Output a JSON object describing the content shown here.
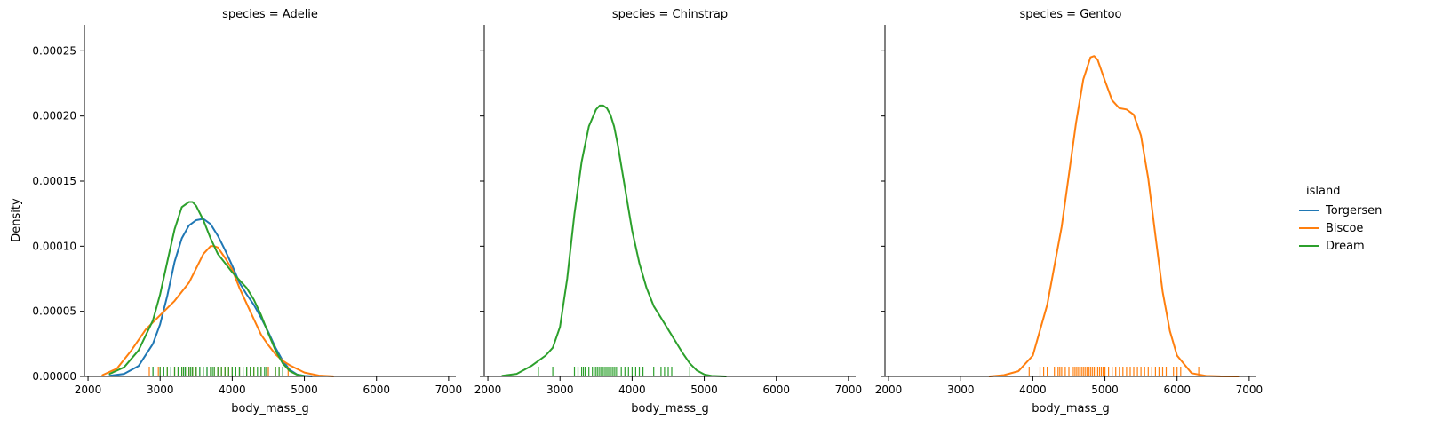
{
  "y_axis_label": "Density",
  "legend": {
    "title": "island",
    "entries": [
      {
        "label": "Torgersen",
        "color": "#1f77b4"
      },
      {
        "label": "Biscoe",
        "color": "#ff7f0e"
      },
      {
        "label": "Dream",
        "color": "#2ca02c"
      }
    ]
  },
  "chart_data": [
    {
      "type": "line",
      "title": "species = Adelie",
      "xlabel": "body_mass_g",
      "ylabel": "Density",
      "xlim": [
        1950,
        7100
      ],
      "ylim": [
        0,
        0.00027
      ],
      "xticks": [
        2000,
        3000,
        4000,
        5000,
        6000,
        7000
      ],
      "yticks": [
        0,
        5e-05,
        0.0001,
        0.00015,
        0.0002,
        0.00025
      ],
      "ytick_labels": [
        "0.00000",
        "0.00005",
        "0.00010",
        "0.00015",
        "0.00020",
        "0.00025"
      ],
      "series": [
        {
          "name": "Torgersen",
          "color": "#1f77b4",
          "x": [
            2300,
            2500,
            2700,
            2900,
            3000,
            3100,
            3200,
            3300,
            3400,
            3500,
            3600,
            3700,
            3800,
            3900,
            4000,
            4100,
            4200,
            4300,
            4400,
            4500,
            4600,
            4700,
            4800,
            4900,
            5000,
            5100
          ],
          "y": [
            5e-07,
            2e-06,
            8e-06,
            2.5e-05,
            4e-05,
            6.2e-05,
            8.8e-05,
            0.000106,
            0.000116,
            0.00012,
            0.000121,
            0.000117,
            0.000108,
            9.7e-05,
            8.5e-05,
            7.2e-05,
            6.3e-05,
            5.5e-05,
            4.5e-05,
            3.4e-05,
            2.2e-05,
            1.2e-05,
            5e-06,
            1.5e-06,
            4e-07,
            1e-07
          ],
          "rug": [
            2900,
            3050,
            3150,
            3250,
            3325,
            3350,
            3400,
            3450,
            3500,
            3550,
            3600,
            3650,
            3700,
            3750,
            3800,
            3900,
            4000,
            4100,
            4200,
            4250,
            4400,
            4450,
            4500,
            4700
          ]
        },
        {
          "name": "Biscoe",
          "color": "#ff7f0e",
          "x": [
            2200,
            2400,
            2600,
            2800,
            3000,
            3200,
            3400,
            3500,
            3600,
            3700,
            3750,
            3800,
            3900,
            4000,
            4100,
            4200,
            4300,
            4400,
            4500,
            4600,
            4700,
            4800,
            5000,
            5200,
            5400
          ],
          "y": [
            1e-06,
            6e-06,
            2e-05,
            3.6e-05,
            4.7e-05,
            5.8e-05,
            7.2e-05,
            8.3e-05,
            9.4e-05,
            0.0001,
            0.0001,
            9.9e-05,
            9.1e-05,
            8.2e-05,
            6.8e-05,
            5.6e-05,
            4.4e-05,
            3.2e-05,
            2.4e-05,
            1.7e-05,
            1.2e-05,
            8.5e-06,
            3e-06,
            7e-07,
            1e-07
          ],
          "rug": [
            2850,
            2975,
            3000,
            3100,
            3200,
            3250,
            3300,
            3350,
            3400,
            3450,
            3500,
            3600,
            3700,
            3750,
            3800,
            3850,
            3900,
            3950,
            4000,
            4100,
            4200,
            4250,
            4300,
            4400,
            4500,
            4600,
            4650,
            4775
          ]
        },
        {
          "name": "Dream",
          "color": "#2ca02c",
          "x": [
            2300,
            2500,
            2700,
            2900,
            3000,
            3100,
            3200,
            3300,
            3400,
            3450,
            3500,
            3600,
            3700,
            3800,
            3900,
            4000,
            4100,
            4200,
            4300,
            4400,
            4500,
            4600,
            4700,
            4800,
            4900,
            5000
          ],
          "y": [
            2e-06,
            7e-06,
            2e-05,
            4.3e-05,
            6.3e-05,
            8.8e-05,
            0.000113,
            0.00013,
            0.000134,
            0.000134,
            0.000131,
            0.00012,
            0.000106,
            9.4e-05,
            8.7e-05,
            8e-05,
            7.4e-05,
            6.8e-05,
            5.9e-05,
            4.7e-05,
            3.3e-05,
            2e-05,
            1e-05,
            4e-06,
            1.3e-06,
            3e-07
          ],
          "rug": [
            2900,
            3000,
            3050,
            3100,
            3150,
            3200,
            3250,
            3300,
            3325,
            3350,
            3400,
            3425,
            3450,
            3500,
            3550,
            3600,
            3650,
            3700,
            3725,
            3750,
            3800,
            3850,
            3900,
            3950,
            4000,
            4050,
            4100,
            4150,
            4200,
            4250,
            4300,
            4350,
            4400,
            4450,
            4475,
            4600,
            4650,
            4700
          ]
        }
      ]
    },
    {
      "type": "line",
      "title": "species = Chinstrap",
      "xlabel": "body_mass_g",
      "xlim": [
        1950,
        7100
      ],
      "ylim": [
        0,
        0.00027
      ],
      "xticks": [
        2000,
        3000,
        4000,
        5000,
        6000,
        7000
      ],
      "series": [
        {
          "name": "Dream",
          "color": "#2ca02c",
          "x": [
            2200,
            2400,
            2600,
            2700,
            2800,
            2900,
            3000,
            3100,
            3200,
            3300,
            3400,
            3500,
            3550,
            3600,
            3650,
            3700,
            3750,
            3800,
            3900,
            4000,
            4100,
            4200,
            4300,
            4400,
            4500,
            4600,
            4700,
            4800,
            4900,
            5000,
            5100,
            5300
          ],
          "y": [
            5e-07,
            2e-06,
            8e-06,
            1.2e-05,
            1.6e-05,
            2.2e-05,
            3.8e-05,
            7.5e-05,
            0.000125,
            0.000165,
            0.000192,
            0.000205,
            0.000208,
            0.000208,
            0.000206,
            0.000201,
            0.000192,
            0.000178,
            0.000145,
            0.000112,
            8.7e-05,
            6.8e-05,
            5.4e-05,
            4.5e-05,
            3.6e-05,
            2.7e-05,
            1.8e-05,
            1e-05,
            4.5e-06,
            1.5e-06,
            4e-07,
            0
          ],
          "rug": [
            2700,
            2900,
            3200,
            3250,
            3300,
            3325,
            3350,
            3400,
            3450,
            3475,
            3500,
            3525,
            3550,
            3575,
            3600,
            3625,
            3650,
            3675,
            3700,
            3725,
            3750,
            3775,
            3800,
            3850,
            3900,
            3950,
            4000,
            4050,
            4100,
            4150,
            4300,
            4400,
            4450,
            4500,
            4550,
            4800
          ]
        }
      ]
    },
    {
      "type": "line",
      "title": "species = Gentoo",
      "xlabel": "body_mass_g",
      "xlim": [
        1950,
        7100
      ],
      "ylim": [
        0,
        0.00027
      ],
      "xticks": [
        2000,
        3000,
        4000,
        5000,
        6000,
        7000
      ],
      "series": [
        {
          "name": "Biscoe",
          "color": "#ff7f0e",
          "x": [
            3400,
            3600,
            3800,
            4000,
            4200,
            4400,
            4500,
            4600,
            4700,
            4800,
            4850,
            4900,
            5000,
            5100,
            5200,
            5300,
            5400,
            5500,
            5600,
            5700,
            5800,
            5900,
            6000,
            6200,
            6400,
            6600,
            6850
          ],
          "y": [
            0,
            1e-06,
            4e-06,
            1.6e-05,
            5.5e-05,
            0.000115,
            0.000155,
            0.000195,
            0.000228,
            0.000245,
            0.000246,
            0.000243,
            0.000227,
            0.000212,
            0.000206,
            0.000205,
            0.000201,
            0.000185,
            0.000152,
            0.000108,
            6.5e-05,
            3.5e-05,
            1.6e-05,
            2.5e-06,
            4e-07,
            1e-07,
            0
          ],
          "rug": [
            3950,
            4100,
            4150,
            4200,
            4300,
            4350,
            4375,
            4400,
            4450,
            4500,
            4550,
            4575,
            4600,
            4625,
            4650,
            4675,
            4700,
            4725,
            4750,
            4775,
            4800,
            4825,
            4850,
            4875,
            4900,
            4925,
            4950,
            4975,
            5000,
            5050,
            5100,
            5150,
            5200,
            5250,
            5300,
            5350,
            5400,
            5450,
            5500,
            5550,
            5600,
            5650,
            5700,
            5750,
            5800,
            5850,
            5950,
            6000,
            6050,
            6300
          ]
        }
      ]
    }
  ]
}
